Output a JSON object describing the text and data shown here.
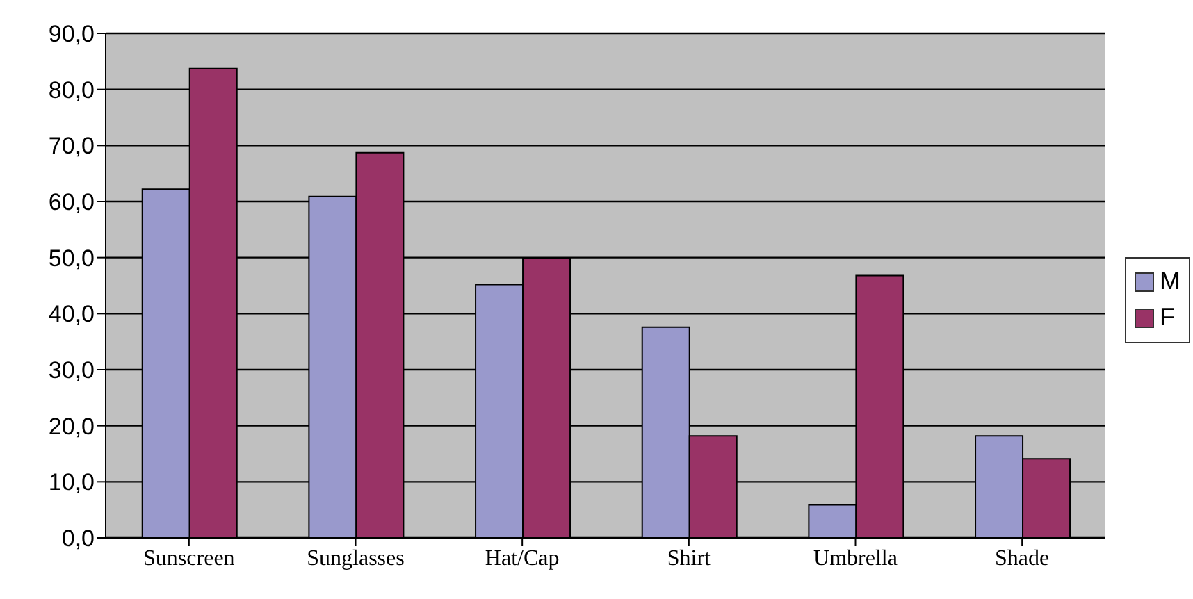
{
  "chart_data": {
    "type": "bar",
    "categories": [
      "Sunscreen",
      "Sunglasses",
      "Hat/Cap",
      "Shirt",
      "Umbrella",
      "Shade"
    ],
    "series": [
      {
        "name": "M",
        "color": "#9999cc",
        "values": [
          62.2,
          60.9,
          45.2,
          37.6,
          5.9,
          18.2
        ]
      },
      {
        "name": "F",
        "color": "#993366",
        "values": [
          83.7,
          68.7,
          49.9,
          18.2,
          46.8,
          14.1
        ]
      }
    ],
    "ylim": [
      0,
      90
    ],
    "yticks": [
      {
        "value": 0,
        "label": "0,0"
      },
      {
        "value": 10,
        "label": "10,0"
      },
      {
        "value": 20,
        "label": "20,0"
      },
      {
        "value": 30,
        "label": "30,0"
      },
      {
        "value": 40,
        "label": "40,0"
      },
      {
        "value": 50,
        "label": "50,0"
      },
      {
        "value": 60,
        "label": "60,0"
      },
      {
        "value": 70,
        "label": "70,0"
      },
      {
        "value": 80,
        "label": "80,0"
      },
      {
        "value": 90,
        "label": "90,0"
      }
    ],
    "grid": "y",
    "legend": "right"
  }
}
